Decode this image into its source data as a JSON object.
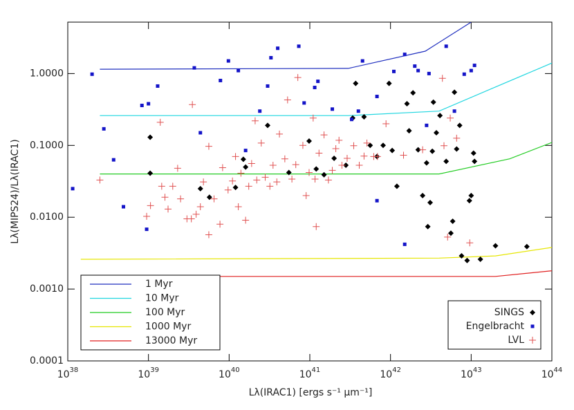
{
  "chart_data": {
    "type": "scatter",
    "x_label": "Lλ(IRAC1) [ergs s⁻¹ μm⁻¹]",
    "y_label": "Lλ(MIPS24)/Lλ(IRAC1)",
    "xscale": "log",
    "yscale": "log",
    "xlim": [
      1e+38,
      1e+44
    ],
    "ylim": [
      0.0001,
      5.2
    ],
    "xticks": [
      {
        "value": 1e+38,
        "label": "10",
        "exponent": "38"
      },
      {
        "value": 1e+39,
        "label": "10",
        "exponent": "39"
      },
      {
        "value": 1e+40,
        "label": "10",
        "exponent": "40"
      },
      {
        "value": 1e+41,
        "label": "10",
        "exponent": "41"
      },
      {
        "value": 1e+42,
        "label": "10",
        "exponent": "42"
      },
      {
        "value": 1e+43,
        "label": "10",
        "exponent": "43"
      },
      {
        "value": 1e+44,
        "label": "10",
        "exponent": "44"
      }
    ],
    "yticks": [
      {
        "value": 0.0001,
        "label": "0.0001"
      },
      {
        "value": 0.001,
        "label": "0.0010"
      },
      {
        "value": 0.01,
        "label": "0.0100"
      },
      {
        "value": 0.1,
        "label": "0.1000"
      },
      {
        "value": 1,
        "label": "1.0000"
      }
    ],
    "series": [
      {
        "name": "1 Myr",
        "color": "#1f2fbf",
        "marker": "line",
        "legend": "lower left",
        "x": [
          2.5e+38,
          3e+41,
          2.7e+42,
          1e+43
        ],
        "values": [
          1.15,
          1.18,
          2.05,
          5.2
        ]
      },
      {
        "name": "10 Myr",
        "color": "#1fd6e0",
        "marker": "line",
        "legend": "lower left",
        "x": [
          2.5e+38,
          3e+41,
          4e+42,
          2e+43,
          1e+44
        ],
        "values": [
          0.26,
          0.26,
          0.3,
          0.65,
          1.4
        ]
      },
      {
        "name": "100 Myr",
        "color": "#22cc22",
        "marker": "line",
        "legend": "lower left",
        "x": [
          2.5e+38,
          4e+42,
          3e+43,
          1e+44
        ],
        "values": [
          0.04,
          0.04,
          0.065,
          0.11
        ]
      },
      {
        "name": "1000 Myr",
        "color": "#e6e600",
        "marker": "line",
        "legend": "lower left",
        "x": [
          1.45e+38,
          4e+42,
          2e+43,
          1e+44
        ],
        "values": [
          0.0026,
          0.0027,
          0.0029,
          0.0038
        ]
      },
      {
        "name": "13000 Myr",
        "color": "#e01f1f",
        "marker": "line",
        "legend": "lower left",
        "x": [
          1.45e+38,
          2e+43,
          1e+44
        ],
        "values": [
          0.0015,
          0.0015,
          0.0018
        ]
      },
      {
        "name": "SINGS",
        "color": "#000000",
        "marker": "diamond",
        "legend": "lower right",
        "x": [
          1.05e+39,
          1.05e+39,
          4.4e+39,
          5.7e+39,
          1.2e+40,
          1.5e+40,
          1.6e+40,
          3e+40,
          5.5e+40,
          9.8e+40,
          1.2e+41,
          1.5e+41,
          2e+41,
          2.8e+41,
          3.4e+41,
          3.7e+41,
          4.7e+41,
          5.6e+41,
          6.8e+41,
          8.1e+41,
          9.6e+41,
          1.05e+42,
          1.2e+42,
          1.6e+42,
          1.7e+42,
          1.9e+42,
          2.2e+42,
          2.5e+42,
          2.8e+42,
          2.9e+42,
          3.1e+42,
          3.3e+42,
          3.4e+42,
          3.7e+42,
          4.1e+42,
          4.9e+42,
          5.6e+42,
          5.9e+42,
          6.6e+42,
          7.2e+42,
          7.6e+42,
          8.9e+42,
          9.5e+42,
          1e+43,
          1.07e+43,
          1.1e+43,
          1.3e+43,
          2e+43,
          4.9e+43,
          6.2e+42
        ],
        "values": [
          0.13,
          0.041,
          0.025,
          0.019,
          0.026,
          0.064,
          0.05,
          0.19,
          0.042,
          0.115,
          0.047,
          0.039,
          0.066,
          0.053,
          0.24,
          0.73,
          0.25,
          0.1,
          0.07,
          0.1,
          0.73,
          0.085,
          0.027,
          0.38,
          0.16,
          0.54,
          0.087,
          0.02,
          0.057,
          0.0074,
          0.016,
          0.083,
          0.4,
          0.15,
          0.26,
          0.06,
          0.006,
          0.0088,
          0.089,
          0.19,
          0.0029,
          0.0025,
          0.017,
          0.02,
          0.078,
          0.06,
          0.0026,
          0.004,
          0.0039,
          0.55
        ]
      },
      {
        "name": "Engelbracht",
        "color": "#1414c8",
        "marker": "square",
        "legend": "lower right",
        "x": [
          1.15e+38,
          2e+38,
          2.8e+38,
          3.7e+38,
          4.9e+38,
          8.3e+38,
          9.5e+38,
          1e+39,
          1.3e+39,
          3.7e+39,
          4.4e+39,
          7.8e+39,
          9.8e+39,
          1.3e+40,
          1.6e+40,
          2.4e+40,
          3e+40,
          3.3e+40,
          4e+40,
          7.3e+40,
          8.5e+40,
          1.15e+41,
          1.26e+41,
          1.9e+41,
          3.3e+41,
          4e+41,
          4.5e+41,
          6.8e+41,
          6.8e+41,
          1.1e+42,
          1.5e+42,
          1.5e+42,
          2e+42,
          2.2e+42,
          2.8e+42,
          3e+42,
          4.9e+42,
          6.2e+42,
          8.2e+42,
          1e+43,
          1.1e+43
        ],
        "values": [
          0.025,
          0.98,
          0.17,
          0.063,
          0.014,
          0.36,
          0.0068,
          0.38,
          0.67,
          1.2,
          0.15,
          0.8,
          1.5,
          1.1,
          0.085,
          0.3,
          0.67,
          1.66,
          2.25,
          2.4,
          0.39,
          0.64,
          0.78,
          0.32,
          0.23,
          0.3,
          1.5,
          0.48,
          0.017,
          1.07,
          1.85,
          0.0042,
          1.27,
          1.1,
          0.19,
          1.0,
          2.4,
          0.3,
          0.98,
          1.1,
          1.3
        ]
      },
      {
        "name": "LVL",
        "color": "#e05050",
        "marker": "plus",
        "legend": "lower right",
        "x": [
          2.5e+38,
          9.5e+38,
          1.06e+39,
          1.4e+39,
          1.46e+39,
          1.6e+39,
          1.75e+39,
          2e+39,
          2.3e+39,
          2.5e+39,
          3e+39,
          3.4e+39,
          3.5e+39,
          3.9e+39,
          4.4e+39,
          4.8e+39,
          5.6e+39,
          5.6e+39,
          6.5e+39,
          7.7e+39,
          8.3e+39,
          9.7e+39,
          1.1e+40,
          1.2e+40,
          1.3e+40,
          1.4e+40,
          1.6e+40,
          1.75e+40,
          1.9e+40,
          2.1e+40,
          2.2e+40,
          2.5e+40,
          2.8e+40,
          3.2e+40,
          3.5e+40,
          3.9e+40,
          4.2e+40,
          4.9e+40,
          5.3e+40,
          6e+40,
          6.7e+40,
          7.1e+40,
          8.2e+40,
          9e+40,
          9.8e+40,
          1.1e+41,
          1.16e+41,
          1.2e+41,
          1.3e+41,
          1.5e+41,
          1.7e+41,
          1.9e+41,
          2.1e+41,
          2.3e+41,
          2.5e+41,
          2.9e+41,
          3.5e+41,
          4.1e+41,
          4.7e+41,
          5.1e+41,
          6.2e+41,
          6.9e+41,
          8.8e+41,
          1.45e+42,
          2.5e+42,
          4.4e+42,
          4.6e+42,
          5.1e+42,
          5.5e+42,
          6.6e+42,
          9.6e+42
        ],
        "values": [
          0.033,
          0.0103,
          0.0145,
          0.21,
          0.027,
          0.019,
          0.013,
          0.027,
          0.048,
          0.018,
          0.0095,
          0.0095,
          0.37,
          0.011,
          0.014,
          0.031,
          0.097,
          0.0057,
          0.018,
          0.008,
          0.049,
          0.024,
          0.032,
          0.07,
          0.014,
          0.041,
          0.0091,
          0.027,
          0.056,
          0.22,
          0.033,
          0.108,
          0.036,
          0.027,
          0.053,
          0.031,
          0.144,
          0.065,
          0.43,
          0.034,
          0.054,
          0.88,
          0.1,
          0.02,
          0.042,
          0.24,
          0.034,
          0.0074,
          0.078,
          0.14,
          0.033,
          0.045,
          0.09,
          0.118,
          0.053,
          0.066,
          0.099,
          0.053,
          0.071,
          0.108,
          0.07,
          0.07,
          0.2,
          0.073,
          0.087,
          0.86,
          0.099,
          0.0053,
          0.24,
          0.126,
          0.0044
        ]
      }
    ]
  }
}
